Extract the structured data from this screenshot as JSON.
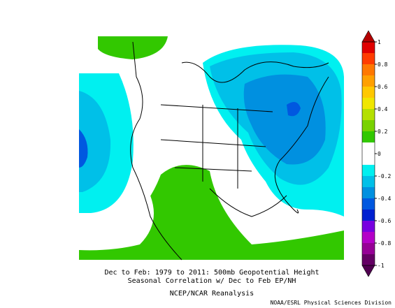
{
  "map": {
    "caption": [
      "Dec to Feb: 1979 to 2011: 500mb Geopotential Height",
      "Seasonal Correlation w/ Dec to Feb EP/NH"
    ],
    "source": "NCEP/NCAR Reanalysis",
    "credit": "NOAA/ESRL Physical Sciences Division",
    "colorbar": {
      "ticks": [
        1,
        0.8,
        0.6,
        0.4,
        0.2,
        0,
        -0.2,
        -0.4,
        -0.6,
        -0.8,
        -1
      ],
      "bin_colors": [
        "#e00000",
        "#ff3c00",
        "#ff7800",
        "#ffa000",
        "#ffc800",
        "#f0e600",
        "#b4e000",
        "#78d200",
        "#32c800",
        "#ffffff",
        "#ffffff",
        "#00f0f0",
        "#00c0e8",
        "#0090e0",
        "#0058e0",
        "#0020d0",
        "#7800e0",
        "#b400c8",
        "#960096",
        "#640064"
      ],
      "over_color": "#b40000",
      "under_color": "#500050"
    }
  }
}
